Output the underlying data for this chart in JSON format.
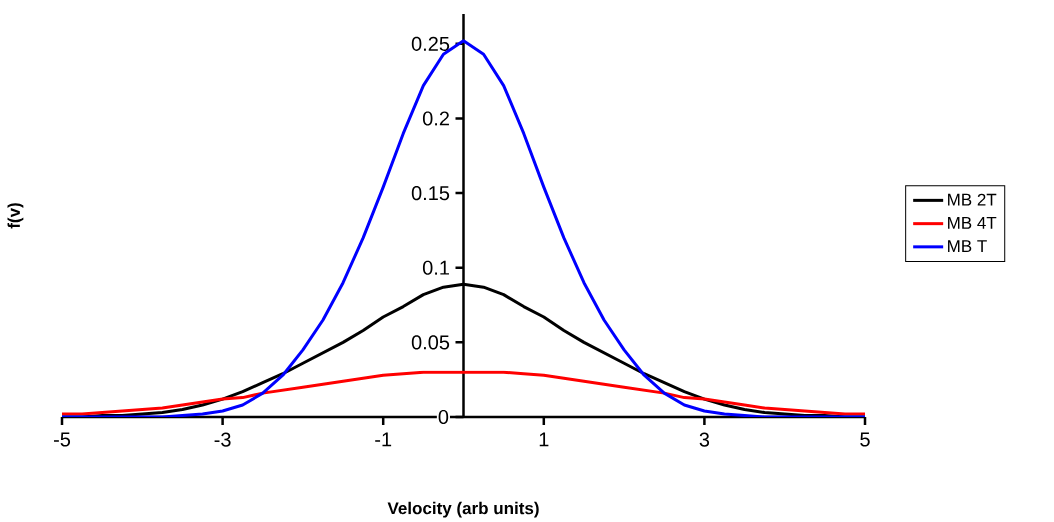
{
  "chart_data": {
    "type": "line",
    "xlabel": "Velocity (arb units)",
    "ylabel": "f(v)",
    "x": [
      -5,
      -4.75,
      -4.5,
      -4.25,
      -4,
      -3.75,
      -3.5,
      -3.25,
      -3,
      -2.75,
      -2.5,
      -2.25,
      -2,
      -1.75,
      -1.5,
      -1.25,
      -1,
      -0.75,
      -0.5,
      -0.25,
      0,
      0.25,
      0.5,
      0.75,
      1,
      1.25,
      1.5,
      1.75,
      2,
      2.25,
      2.5,
      2.75,
      3,
      3.25,
      3.5,
      3.75,
      4,
      4.25,
      4.5,
      4.75,
      5
    ],
    "series": [
      {
        "name": "MB 2T",
        "color": "#000000",
        "values": [
          0,
          0,
          0.001,
          0.001,
          0.002,
          0.003,
          0.005,
          0.008,
          0.012,
          0.017,
          0.023,
          0.029,
          0.036,
          0.043,
          0.05,
          0.058,
          0.067,
          0.074,
          0.082,
          0.087,
          0.089,
          0.087,
          0.082,
          0.074,
          0.067,
          0.058,
          0.05,
          0.043,
          0.036,
          0.029,
          0.023,
          0.017,
          0.012,
          0.008,
          0.005,
          0.003,
          0.002,
          0.001,
          0.001,
          0,
          0
        ]
      },
      {
        "name": "MB 4T",
        "color": "#ff0000",
        "values": [
          0.002,
          0.002,
          0.003,
          0.004,
          0.005,
          0.006,
          0.008,
          0.01,
          0.012,
          0.013,
          0.016,
          0.018,
          0.02,
          0.022,
          0.024,
          0.026,
          0.028,
          0.029,
          0.03,
          0.03,
          0.03,
          0.03,
          0.03,
          0.029,
          0.028,
          0.026,
          0.024,
          0.022,
          0.02,
          0.018,
          0.016,
          0.013,
          0.012,
          0.01,
          0.008,
          0.006,
          0.005,
          0.004,
          0.003,
          0.002,
          0.002
        ]
      },
      {
        "name": "MB T",
        "color": "#0000ff",
        "values": [
          0,
          0,
          0,
          0,
          0,
          0,
          0.001,
          0.002,
          0.004,
          0.008,
          0.016,
          0.028,
          0.045,
          0.065,
          0.09,
          0.12,
          0.154,
          0.19,
          0.222,
          0.243,
          0.252,
          0.243,
          0.222,
          0.19,
          0.154,
          0.12,
          0.09,
          0.065,
          0.045,
          0.028,
          0.016,
          0.008,
          0.004,
          0.002,
          0.001,
          0,
          0,
          0,
          0,
          0,
          0
        ]
      }
    ],
    "xlim": [
      -5,
      5
    ],
    "xticks": [
      -5,
      -3,
      -1,
      1,
      3,
      5
    ],
    "ylim": [
      0,
      0.27
    ],
    "yticks": [
      0,
      0.05,
      0.1,
      0.15,
      0.2,
      0.25
    ],
    "grid": false,
    "legend": "right",
    "marker": "none",
    "line_style": "solid"
  }
}
